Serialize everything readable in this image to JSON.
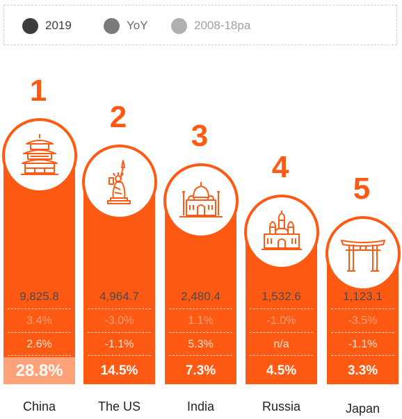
{
  "legend": [
    {
      "label": "2019",
      "color": "#3d3d3d"
    },
    {
      "label": "YoY",
      "color": "#7a7a7a"
    },
    {
      "label": "2008-18pa",
      "color": "#b0b0b0"
    }
  ],
  "chart_data": {
    "type": "bar",
    "categories": [
      "China",
      "The US",
      "India",
      "Russia",
      "Japan"
    ],
    "ranks": [
      "1",
      "2",
      "3",
      "4",
      "5"
    ],
    "icons": [
      "pagoda-icon",
      "statue-of-liberty-icon",
      "taj-mahal-icon",
      "st-basils-cathedral-icon",
      "torii-gate-icon"
    ],
    "series": [
      {
        "name": "2019",
        "values": [
          "9,825.8",
          "4,964.7",
          "2,480.4",
          "1,532.6",
          "1,123.1"
        ]
      },
      {
        "name": "YoY",
        "values": [
          "3.4%",
          "-3.0%",
          "1.1%",
          "-1.0%",
          "-3.5%"
        ]
      },
      {
        "name": "2008-18pa",
        "values": [
          "2.6%",
          "-1.1%",
          "5.3%",
          "n/a",
          "-1.1%"
        ]
      }
    ],
    "shares": [
      "28.8%",
      "14.5%",
      "7.3%",
      "4.5%",
      "3.3%"
    ],
    "share_values": [
      28.8,
      14.5,
      7.3,
      4.5,
      3.3
    ]
  }
}
